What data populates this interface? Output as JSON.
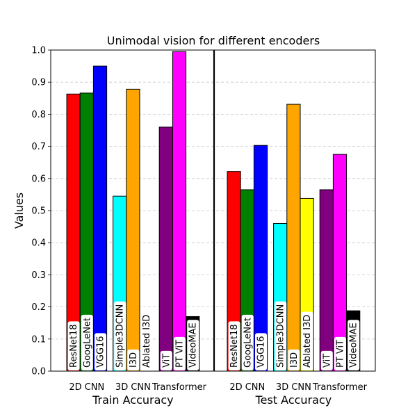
{
  "chart_data": {
    "type": "bar",
    "title": "Unimodal vision for different encoders",
    "ylabel": "Values",
    "xlabel": "",
    "ylim": [
      0,
      1.0
    ],
    "yticks": [
      "0.0",
      "0.1",
      "0.2",
      "0.3",
      "0.4",
      "0.5",
      "0.6",
      "0.7",
      "0.8",
      "0.9",
      "1.0"
    ],
    "grid": "y-dashed",
    "sections": [
      {
        "label": "Train Accuracy",
        "groups": [
          {
            "label": "2D CNN",
            "bars": [
              {
                "name": "ResNet18",
                "value": 0.863,
                "color": "#ff0000"
              },
              {
                "name": "GoogLeNet",
                "value": 0.866,
                "color": "#008000"
              },
              {
                "name": "VGG16",
                "value": 0.95,
                "color": "#0000ff"
              }
            ]
          },
          {
            "label": "3D CNN",
            "bars": [
              {
                "name": "Simple3DCNN",
                "value": 0.545,
                "color": "#00ffff"
              },
              {
                "name": "I3D",
                "value": 0.878,
                "color": "#ffa500"
              },
              {
                "name": "Ablated I3D",
                "value": 0.0,
                "color": "#ffff00"
              }
            ]
          },
          {
            "label": "Transformer",
            "bars": [
              {
                "name": "ViT",
                "value": 0.76,
                "color": "#800080"
              },
              {
                "name": "PT ViT",
                "value": 0.995,
                "color": "#ff00ff"
              },
              {
                "name": "VideoMAE",
                "value": 0.17,
                "color": "#000000"
              }
            ]
          }
        ]
      },
      {
        "label": "Test Accuracy",
        "groups": [
          {
            "label": "2D CNN",
            "bars": [
              {
                "name": "ResNet18",
                "value": 0.622,
                "color": "#ff0000"
              },
              {
                "name": "GoogLeNet",
                "value": 0.565,
                "color": "#008000"
              },
              {
                "name": "VGG16",
                "value": 0.703,
                "color": "#0000ff"
              }
            ]
          },
          {
            "label": "3D CNN",
            "bars": [
              {
                "name": "Simple3DCNN",
                "value": 0.46,
                "color": "#00ffff"
              },
              {
                "name": "I3D",
                "value": 0.831,
                "color": "#ffa500"
              },
              {
                "name": "Ablated I3D",
                "value": 0.538,
                "color": "#ffff00"
              }
            ]
          },
          {
            "label": "Transformer",
            "bars": [
              {
                "name": "ViT",
                "value": 0.565,
                "color": "#800080"
              },
              {
                "name": "PT ViT",
                "value": 0.675,
                "color": "#ff00ff"
              },
              {
                "name": "VideoMAE",
                "value": 0.188,
                "color": "#000000"
              }
            ]
          }
        ]
      }
    ]
  }
}
